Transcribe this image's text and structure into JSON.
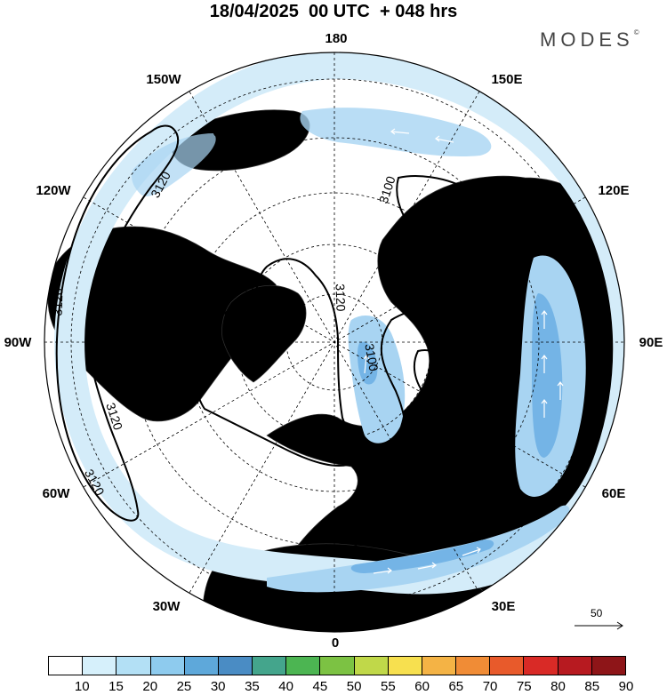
{
  "title": "18/04/2025  00 UTC  + 048 hrs",
  "brand": "MODES",
  "brand_mark": "©",
  "longitude_labels": [
    "180",
    "150E",
    "120E",
    "90E",
    "60E",
    "30E",
    "0",
    "30W",
    "60W",
    "90W",
    "120W",
    "150W"
  ],
  "contours": [
    {
      "label": "3120",
      "value": 3120
    },
    {
      "label": "3100",
      "value": 3100
    }
  ],
  "contour_labels": [
    "3120",
    "3120",
    "3120",
    "3120",
    "3120",
    "3120",
    "3100",
    "3100",
    "3100",
    "3100"
  ],
  "colorbar": {
    "labels": [
      "10",
      "15",
      "20",
      "25",
      "30",
      "35",
      "40",
      "45",
      "50",
      "55",
      "60",
      "65",
      "70",
      "75",
      "80",
      "85",
      "90"
    ],
    "colors": [
      "#ffffff",
      "#d6f0fb",
      "#b3e0f5",
      "#8ecbee",
      "#5ea8da",
      "#4a8cc4",
      "#44a58c",
      "#4cb552",
      "#7cc243",
      "#c0d849",
      "#f7e04f",
      "#f4b345",
      "#f08c36",
      "#e85a2b",
      "#d92a26",
      "#b71a20",
      "#8e1518"
    ]
  },
  "vector_reference": {
    "value": "50"
  },
  "colors": {
    "land": "#f2f2f2",
    "ocean": "#ffffff",
    "jet_light": "#d4ecf9",
    "jet_mid": "#a8d4f2",
    "jet_strong": "#74b4e6",
    "jet_core": "#5a9bd8"
  }
}
